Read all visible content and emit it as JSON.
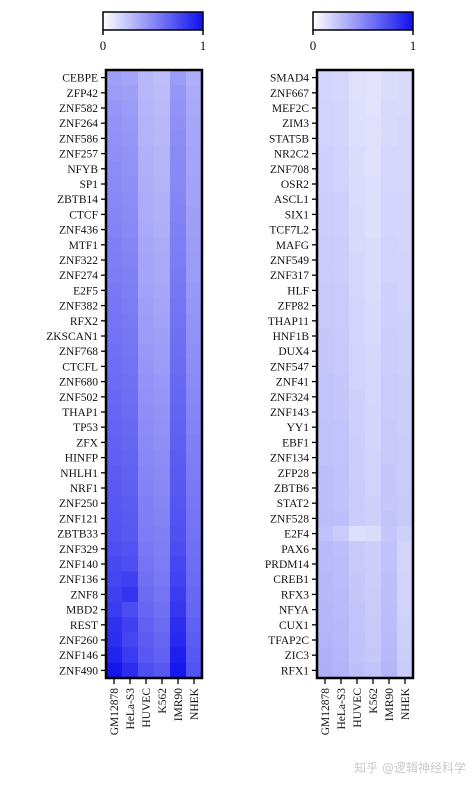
{
  "colors": {
    "low": "#ffffff",
    "high": "#1010ee",
    "frame": "#000000"
  },
  "watermark": "知乎 @逻辑神经科学",
  "chart_data": [
    {
      "type": "heatmap",
      "colorbar": {
        "min": 0,
        "max": 1,
        "tick_labels": [
          "0",
          "1"
        ]
      },
      "columns": [
        "GM12878",
        "HeLa-S3",
        "HUVEC",
        "K562",
        "IMR90",
        "NHEK"
      ],
      "rows": [
        "CEBPE",
        "ZFP42",
        "ZNF582",
        "ZNF264",
        "ZNF586",
        "ZNF257",
        "NFYB",
        "SP1",
        "ZBTB14",
        "CTCF",
        "ZNF436",
        "MTF1",
        "ZNF322",
        "ZNF274",
        "E2F5",
        "ZNF382",
        "RFX2",
        "ZKSCAN1",
        "ZNF768",
        "CTCFL",
        "ZNF680",
        "ZNF502",
        "THAP1",
        "TP53",
        "ZFX",
        "HINFP",
        "NHLH1",
        "NRF1",
        "ZNF250",
        "ZNF121",
        "ZBTB33",
        "ZNF329",
        "ZNF140",
        "ZNF136",
        "ZNF8",
        "MBD2",
        "REST",
        "ZNF260",
        "ZNF146",
        "ZNF490"
      ],
      "values": [
        [
          0.4,
          0.38,
          0.3,
          0.27,
          0.42,
          0.34
        ],
        [
          0.42,
          0.4,
          0.3,
          0.28,
          0.44,
          0.35
        ],
        [
          0.44,
          0.42,
          0.31,
          0.29,
          0.45,
          0.36
        ],
        [
          0.45,
          0.43,
          0.32,
          0.3,
          0.47,
          0.37
        ],
        [
          0.46,
          0.44,
          0.32,
          0.3,
          0.48,
          0.37
        ],
        [
          0.47,
          0.45,
          0.33,
          0.31,
          0.49,
          0.38
        ],
        [
          0.48,
          0.46,
          0.33,
          0.31,
          0.5,
          0.38
        ],
        [
          0.49,
          0.47,
          0.34,
          0.32,
          0.5,
          0.39
        ],
        [
          0.5,
          0.48,
          0.35,
          0.33,
          0.51,
          0.39
        ],
        [
          0.51,
          0.49,
          0.35,
          0.33,
          0.52,
          0.4
        ],
        [
          0.52,
          0.5,
          0.36,
          0.34,
          0.53,
          0.4
        ],
        [
          0.53,
          0.51,
          0.37,
          0.35,
          0.54,
          0.41
        ],
        [
          0.54,
          0.52,
          0.38,
          0.36,
          0.55,
          0.42
        ],
        [
          0.55,
          0.53,
          0.38,
          0.36,
          0.56,
          0.42
        ],
        [
          0.56,
          0.54,
          0.39,
          0.37,
          0.57,
          0.43
        ],
        [
          0.57,
          0.55,
          0.4,
          0.38,
          0.58,
          0.44
        ],
        [
          0.58,
          0.56,
          0.41,
          0.39,
          0.59,
          0.45
        ],
        [
          0.59,
          0.57,
          0.42,
          0.4,
          0.6,
          0.46
        ],
        [
          0.6,
          0.58,
          0.43,
          0.41,
          0.61,
          0.47
        ],
        [
          0.61,
          0.59,
          0.44,
          0.42,
          0.62,
          0.48
        ],
        [
          0.62,
          0.6,
          0.45,
          0.43,
          0.63,
          0.49
        ],
        [
          0.63,
          0.61,
          0.46,
          0.44,
          0.64,
          0.5
        ],
        [
          0.64,
          0.62,
          0.47,
          0.45,
          0.65,
          0.51
        ],
        [
          0.65,
          0.63,
          0.48,
          0.46,
          0.66,
          0.52
        ],
        [
          0.66,
          0.64,
          0.49,
          0.47,
          0.67,
          0.53
        ],
        [
          0.67,
          0.65,
          0.5,
          0.48,
          0.68,
          0.54
        ],
        [
          0.68,
          0.66,
          0.51,
          0.49,
          0.69,
          0.55
        ],
        [
          0.69,
          0.67,
          0.52,
          0.5,
          0.7,
          0.56
        ],
        [
          0.7,
          0.68,
          0.53,
          0.51,
          0.71,
          0.57
        ],
        [
          0.71,
          0.69,
          0.54,
          0.52,
          0.72,
          0.58
        ],
        [
          0.72,
          0.7,
          0.55,
          0.53,
          0.73,
          0.59
        ],
        [
          0.74,
          0.72,
          0.56,
          0.54,
          0.75,
          0.6
        ],
        [
          0.76,
          0.74,
          0.58,
          0.55,
          0.77,
          0.61
        ],
        [
          0.78,
          0.8,
          0.6,
          0.56,
          0.79,
          0.62
        ],
        [
          0.8,
          0.85,
          0.62,
          0.58,
          0.82,
          0.63
        ],
        [
          0.82,
          0.75,
          0.64,
          0.6,
          0.84,
          0.64
        ],
        [
          0.86,
          0.8,
          0.66,
          0.62,
          0.88,
          0.66
        ],
        [
          0.88,
          0.78,
          0.68,
          0.64,
          0.9,
          0.68
        ],
        [
          0.92,
          0.82,
          0.7,
          0.66,
          0.94,
          0.7
        ],
        [
          0.98,
          0.88,
          0.74,
          0.7,
          0.97,
          0.72
        ]
      ]
    },
    {
      "type": "heatmap",
      "colorbar": {
        "min": 0,
        "max": 1,
        "tick_labels": [
          "0",
          "1"
        ]
      },
      "columns": [
        "GM12878",
        "HeLa-S3",
        "HUVEC",
        "K562",
        "IMR90",
        "NHEK"
      ],
      "rows": [
        "SMAD4",
        "ZNF667",
        "MEF2C",
        "ZIM3",
        "STAT5B",
        "NR2C2",
        "ZNF708",
        "OSR2",
        "ASCL1",
        "SIX1",
        "TCF7L2",
        "MAFG",
        "ZNF549",
        "ZNF317",
        "HLF",
        "ZFP82",
        "THAP11",
        "HNF1B",
        "DUX4",
        "ZNF547",
        "ZNF41",
        "ZNF324",
        "ZNF143",
        "YY1",
        "EBF1",
        "ZNF134",
        "ZFP28",
        "ZBTB6",
        "STAT2",
        "ZNF528",
        "E2F4",
        "PAX6",
        "PRDM14",
        "CREB1",
        "RFX3",
        "NFYA",
        "CUX1",
        "TFAP2C",
        "ZIC3",
        "RFX1"
      ],
      "values": [
        [
          0.18,
          0.17,
          0.13,
          0.12,
          0.15,
          0.16
        ],
        [
          0.18,
          0.17,
          0.13,
          0.12,
          0.15,
          0.16
        ],
        [
          0.19,
          0.18,
          0.14,
          0.12,
          0.16,
          0.16
        ],
        [
          0.19,
          0.18,
          0.14,
          0.13,
          0.16,
          0.17
        ],
        [
          0.19,
          0.18,
          0.14,
          0.13,
          0.16,
          0.17
        ],
        [
          0.2,
          0.19,
          0.15,
          0.13,
          0.17,
          0.17
        ],
        [
          0.2,
          0.19,
          0.15,
          0.13,
          0.17,
          0.17
        ],
        [
          0.2,
          0.19,
          0.15,
          0.14,
          0.17,
          0.17
        ],
        [
          0.21,
          0.2,
          0.15,
          0.14,
          0.18,
          0.18
        ],
        [
          0.21,
          0.2,
          0.16,
          0.14,
          0.18,
          0.18
        ],
        [
          0.21,
          0.2,
          0.16,
          0.14,
          0.18,
          0.18
        ],
        [
          0.22,
          0.21,
          0.16,
          0.15,
          0.19,
          0.18
        ],
        [
          0.22,
          0.21,
          0.17,
          0.15,
          0.19,
          0.19
        ],
        [
          0.22,
          0.21,
          0.17,
          0.15,
          0.19,
          0.19
        ],
        [
          0.23,
          0.22,
          0.17,
          0.15,
          0.2,
          0.19
        ],
        [
          0.23,
          0.22,
          0.18,
          0.16,
          0.2,
          0.19
        ],
        [
          0.23,
          0.22,
          0.18,
          0.16,
          0.2,
          0.2
        ],
        [
          0.24,
          0.23,
          0.18,
          0.16,
          0.21,
          0.2
        ],
        [
          0.24,
          0.23,
          0.19,
          0.17,
          0.21,
          0.2
        ],
        [
          0.24,
          0.23,
          0.19,
          0.17,
          0.21,
          0.2
        ],
        [
          0.25,
          0.24,
          0.19,
          0.17,
          0.22,
          0.21
        ],
        [
          0.25,
          0.24,
          0.2,
          0.17,
          0.22,
          0.21
        ],
        [
          0.25,
          0.24,
          0.2,
          0.18,
          0.22,
          0.21
        ],
        [
          0.26,
          0.25,
          0.2,
          0.18,
          0.23,
          0.21
        ],
        [
          0.26,
          0.25,
          0.21,
          0.18,
          0.23,
          0.22
        ],
        [
          0.26,
          0.25,
          0.21,
          0.19,
          0.23,
          0.22
        ],
        [
          0.27,
          0.26,
          0.21,
          0.19,
          0.24,
          0.22
        ],
        [
          0.27,
          0.26,
          0.22,
          0.19,
          0.24,
          0.22
        ],
        [
          0.27,
          0.26,
          0.22,
          0.2,
          0.24,
          0.23
        ],
        [
          0.28,
          0.27,
          0.22,
          0.2,
          0.25,
          0.23
        ],
        [
          0.26,
          0.22,
          0.14,
          0.15,
          0.24,
          0.2
        ],
        [
          0.29,
          0.27,
          0.23,
          0.21,
          0.26,
          0.18
        ],
        [
          0.29,
          0.28,
          0.23,
          0.21,
          0.26,
          0.18
        ],
        [
          0.3,
          0.28,
          0.24,
          0.21,
          0.27,
          0.19
        ],
        [
          0.3,
          0.29,
          0.24,
          0.22,
          0.27,
          0.19
        ],
        [
          0.31,
          0.29,
          0.25,
          0.22,
          0.28,
          0.19
        ],
        [
          0.31,
          0.3,
          0.25,
          0.23,
          0.28,
          0.2
        ],
        [
          0.32,
          0.3,
          0.26,
          0.23,
          0.29,
          0.2
        ],
        [
          0.33,
          0.31,
          0.26,
          0.24,
          0.3,
          0.21
        ],
        [
          0.34,
          0.32,
          0.27,
          0.25,
          0.31,
          0.22
        ]
      ]
    }
  ]
}
